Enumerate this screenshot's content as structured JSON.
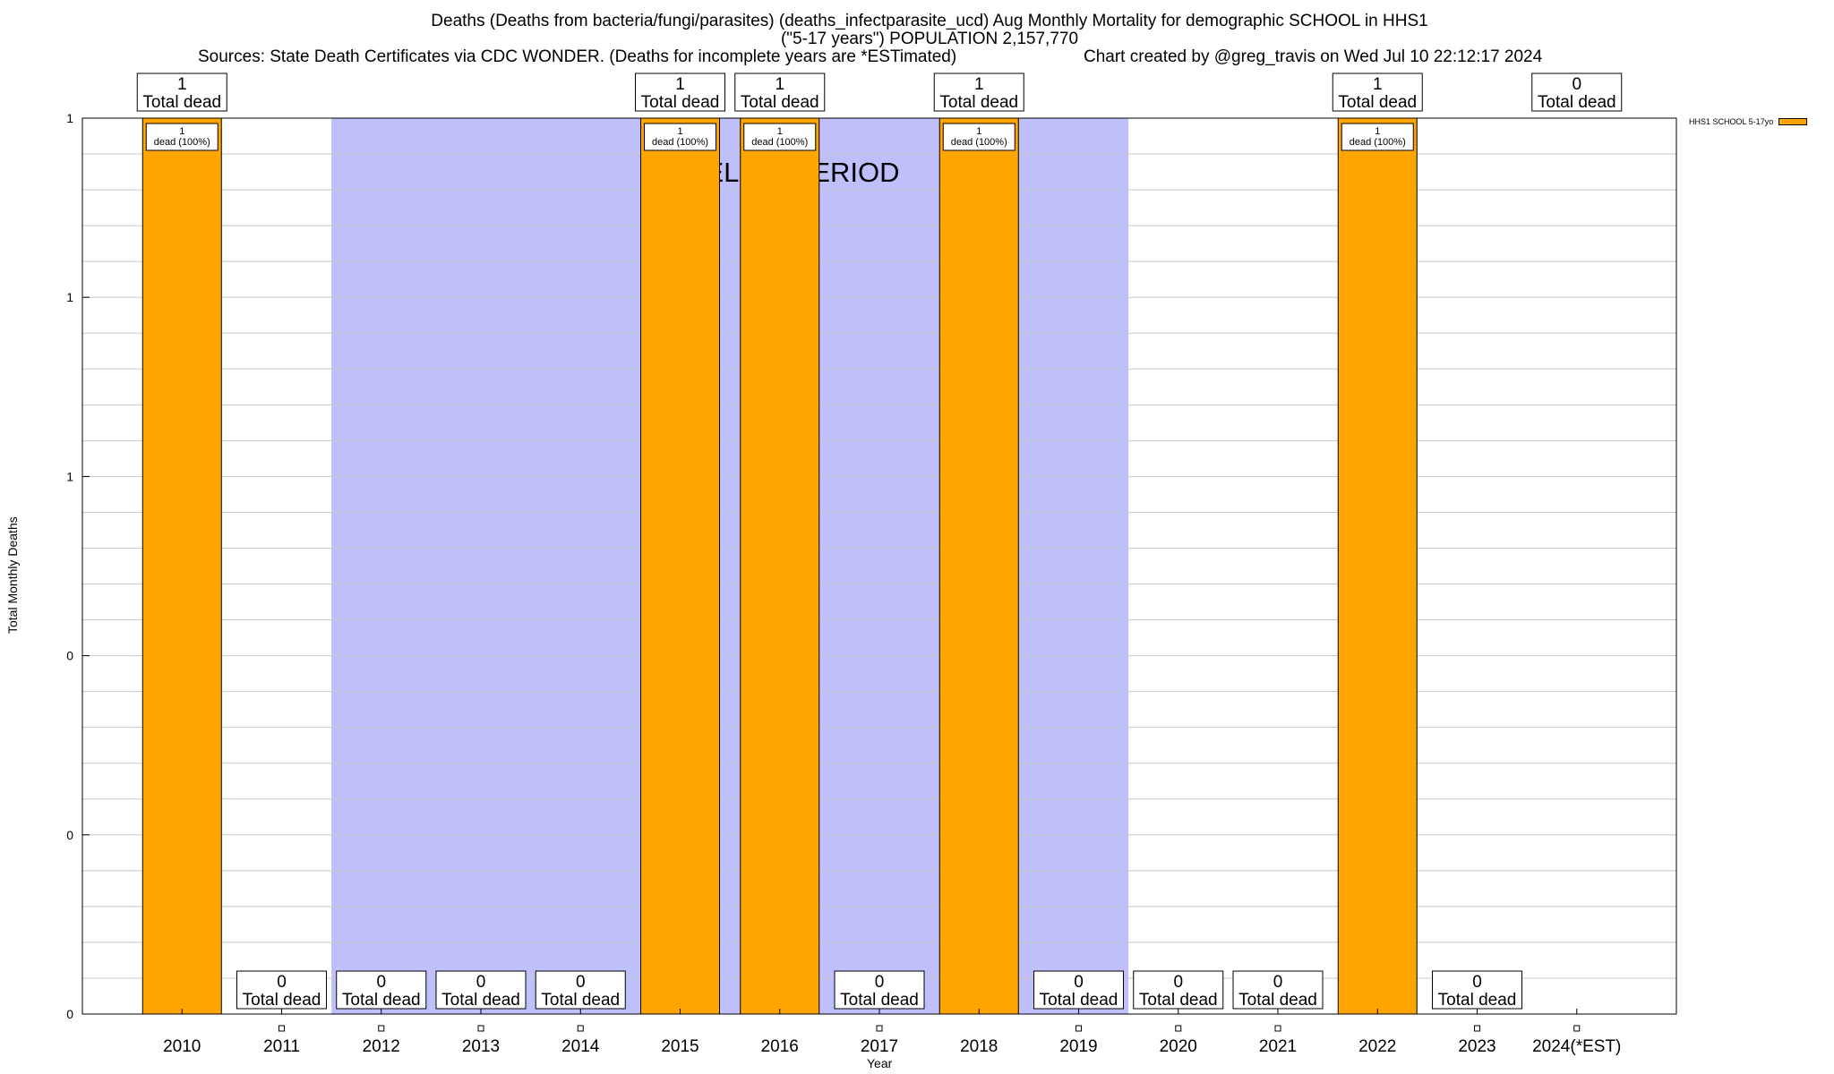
{
  "title": {
    "line1": "Deaths (Deaths from bacteria/fungi/parasites) (deaths_infectparasite_ucd) Aug Monthly Mortality for demographic SCHOOL in HHS1",
    "line2": "(\"5-17 years\") POPULATION 2,157,770",
    "sources": "Sources: State Death Certificates via CDC WONDER. (Deaths for incomplete years are *ESTimated)",
    "credit": "Chart created by @greg_travis on Wed Jul 10 22:12:17 2024"
  },
  "legend_label": "HHS1 SCHOOL 5-17yo",
  "baseline_label": "BASELINE PERIOD",
  "chart_data": {
    "type": "bar",
    "categories": [
      "2010",
      "2011",
      "2012",
      "2013",
      "2014",
      "2015",
      "2016",
      "2017",
      "2018",
      "2019",
      "2020",
      "2021",
      "2022",
      "2023",
      "2024(*EST)"
    ],
    "series": [
      {
        "name": "HHS1 SCHOOL 5-17yo",
        "values": [
          1,
          0,
          0,
          0,
          0,
          1,
          1,
          0,
          1,
          0,
          0,
          0,
          1,
          0,
          0
        ]
      }
    ],
    "total_labels": [
      "1",
      "0",
      "0",
      "0",
      "0",
      "1",
      "1",
      "0",
      "1",
      "0",
      "0",
      "0",
      "1",
      "0",
      "0"
    ],
    "total_suffix": "Total dead",
    "inner_labels": [
      "1\ndead (100%)",
      "",
      "",
      "",
      "",
      "1\ndead (100%)",
      "1\ndead (100%)",
      "",
      "1\ndead (100%)",
      "",
      "",
      "",
      "1\ndead (100%)",
      "",
      ""
    ],
    "baseline_period": [
      "2012",
      "2019"
    ],
    "xlabel": "Year",
    "ylabel": "Total Monthly Deaths",
    "ylim": [
      0,
      1
    ],
    "ytick_labels": [
      "0",
      "0",
      "0",
      "1",
      "1",
      "1"
    ],
    "grid": true,
    "colors": {
      "bar": "#ffa500",
      "baseline": "#bfbffb"
    }
  }
}
